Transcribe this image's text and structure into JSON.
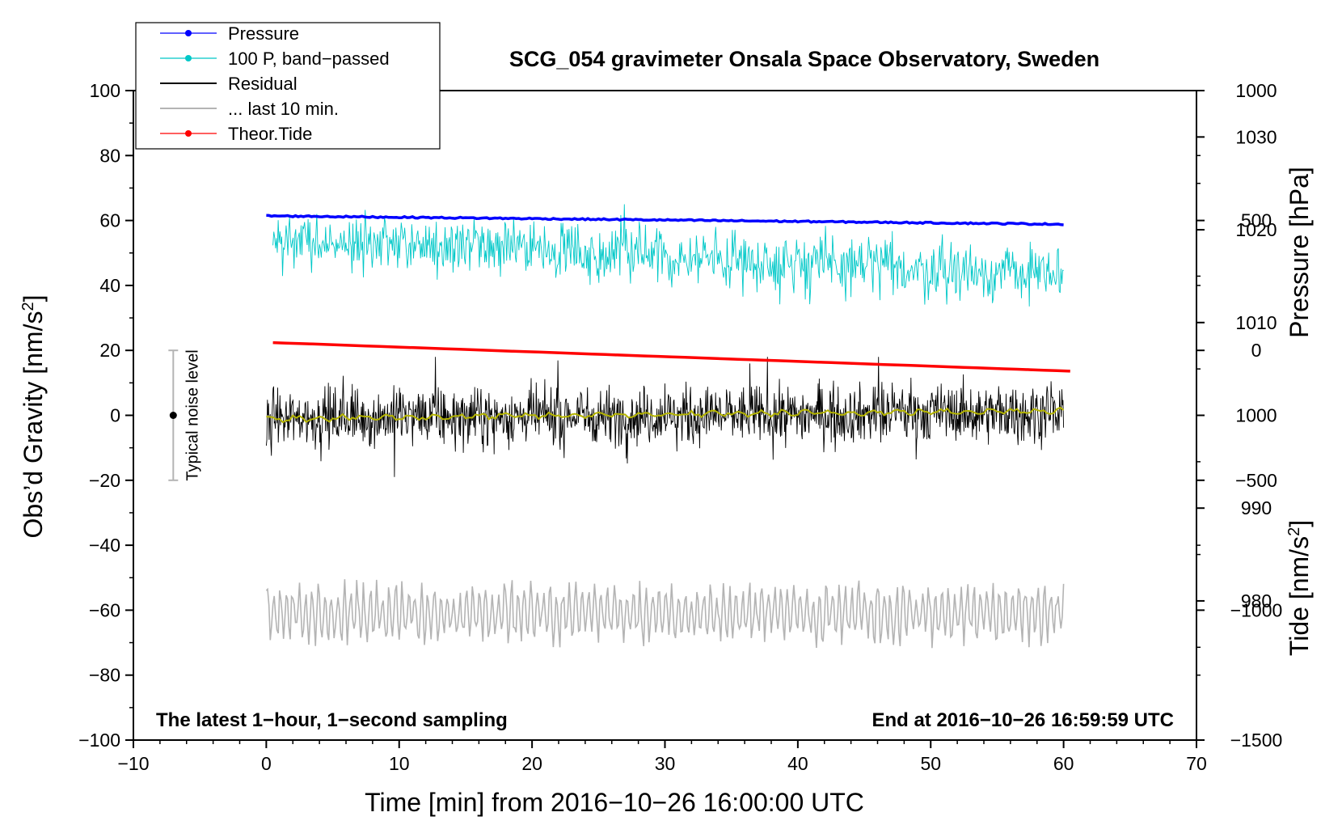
{
  "chart_data": {
    "type": "line",
    "title": "SCG_054 gravimeter Onsala Space Observatory, Sweden",
    "xlabel": "Time [min] from 2016−10−26 16:00:00 UTC",
    "ylabel_left": "Obs’d Gravity [nm/s",
    "ylabel_left_sup": "2",
    "ylabel_left_close": "]",
    "ylabel_right_pressure": "Pressure [hPa]",
    "ylabel_right_tide": "Tide [nm/s",
    "ylabel_right_tide_sup": "2",
    "ylabel_right_tide_close": "]",
    "xlim": [
      -10,
      70
    ],
    "ylim_left": [
      -100,
      100
    ],
    "pressure_ylim": [
      965,
      1035
    ],
    "tide_ylim": [
      -1500,
      1000
    ],
    "x_ticks": [
      "−10",
      "0",
      "10",
      "20",
      "30",
      "40",
      "50",
      "60",
      "70"
    ],
    "y_ticks_left": [
      "−100",
      "−80",
      "−60",
      "−40",
      "−20",
      "0",
      "20",
      "40",
      "60",
      "80",
      "100"
    ],
    "y_ticks_pressure": [
      "980",
      "990",
      "1000",
      "1010",
      "1020",
      "1030"
    ],
    "y_ticks_tide": [
      "−1500",
      "−1000",
      "−500",
      "0",
      "500",
      "1000"
    ],
    "annotation_left": "The latest 1−hour, 1−second sampling",
    "annotation_right": "End at 2016−10−26 16:59:59 UTC",
    "noise_label": "Typical noise level",
    "noise_bar": {
      "x": -7,
      "center": 0,
      "low": -20,
      "high": 20
    },
    "legend": [
      {
        "label": "Pressure",
        "color": "#0000ff",
        "marker": true
      },
      {
        "label": "100 P, band−passed",
        "color": "#00c8c8",
        "marker": true
      },
      {
        "label": "Residual",
        "color": "#000000",
        "marker": false
      },
      {
        "label": "... last 10 min.",
        "color": "#b4b4b4",
        "marker": false
      },
      {
        "label": "Theor.Tide",
        "color": "#ff0000",
        "marker": true
      }
    ],
    "series": [
      {
        "name": "Pressure",
        "axis": "pressure",
        "color": "#0000ff",
        "x_start": 0,
        "x_end": 60,
        "start": 1021.5,
        "end": 1020.6
      },
      {
        "name": "100 P, band-passed",
        "axis": "left",
        "color": "#00c8c8",
        "x_start": 0.5,
        "x_end": 60,
        "start": 55,
        "end": 43,
        "amplitude": 6,
        "spike_min": 30,
        "spike_max": 65
      },
      {
        "name": "Residual",
        "axis": "left",
        "color": "#000000",
        "x_start": 0,
        "x_end": 60,
        "start": -1,
        "end": 1,
        "amplitude": 8,
        "spike_min": -19,
        "spike_max": 18
      },
      {
        "name": "Residual smoothed",
        "axis": "left",
        "color": "#b4b400",
        "x_start": 0,
        "x_end": 60,
        "start": -1,
        "end": 1.5
      },
      {
        "name": "... last 10 min.",
        "axis": "left",
        "color": "#b4b4b4",
        "x_start": 0,
        "x_end": 60,
        "center": -61,
        "amplitude": 9,
        "min": -76,
        "max": -46
      },
      {
        "name": "Theor.Tide",
        "axis": "tide",
        "color": "#ff0000",
        "x_start": 0.5,
        "x_end": 60.5,
        "start": 30,
        "end": -80
      }
    ]
  }
}
